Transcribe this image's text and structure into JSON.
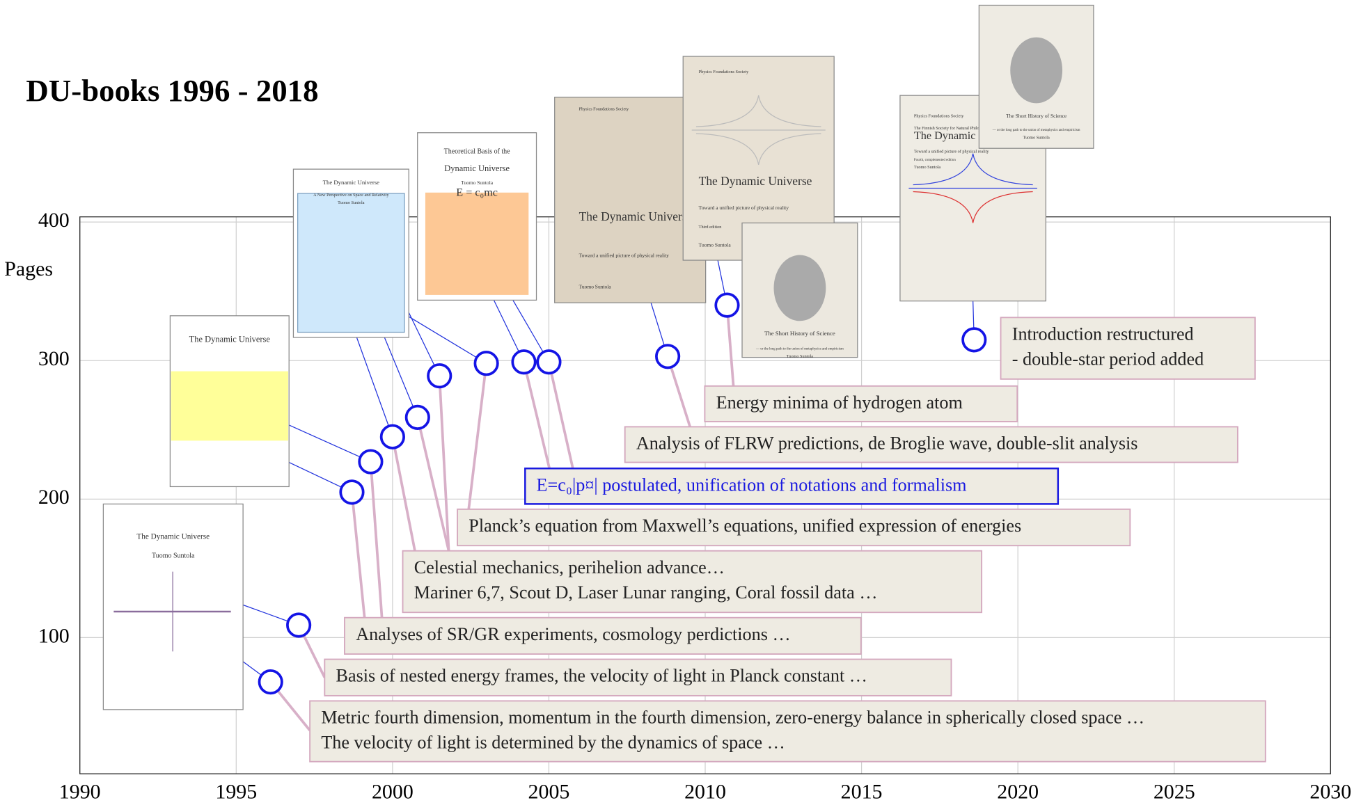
{
  "chart_data": {
    "type": "scatter",
    "title": "DU-books 1996 - 2018",
    "y_label": "Pages",
    "x": [
      1996.1,
      1997.0,
      1998.7,
      1999.3,
      2000.0,
      2000.8,
      2001.5,
      2003.0,
      2004.2,
      2005.0,
      2008.8,
      2010.7,
      2018.6
    ],
    "values": [
      68,
      109,
      205,
      227,
      245,
      259,
      289,
      298,
      299,
      299,
      303,
      340,
      315
    ],
    "color": "#1414e6",
    "xlim": [
      1990,
      2030
    ],
    "xticks": [
      1990,
      1995,
      2000,
      2005,
      2010,
      2015,
      2020,
      2025,
      2030
    ],
    "ylim": [
      0,
      400
    ],
    "yticks": [
      100,
      200,
      300,
      400
    ],
    "grid": true,
    "annotations": [
      [
        "Metric fourth dimension, momentum in the fourth dimension, zero-energy balance in spherically closed space …",
        "The velocity of light is determined by the dynamics of space …"
      ],
      [
        "Basis of nested energy frames, the velocity of light in Planck constant …"
      ],
      [
        "Analyses of SR/GR experiments, cosmology perdictions …"
      ],
      [
        "Celestial mechanics, perihelion advance…",
        "Mariner 6,7, Scout D, Laser Lunar ranging, Coral fossil data …"
      ],
      [
        "Planck’s equation from Maxwell’s equations, unified expression of energies"
      ],
      [
        "E=c₀|p¤| postulated, unification of notations and formalism"
      ],
      [
        "Analysis of FLRW predictions, de Broglie wave, double-slit analysis"
      ],
      [
        "Energy minima of hydrogen atom"
      ],
      [
        "Introduction restructured",
        "- double-star period added"
      ]
    ]
  },
  "covers": [
    [
      "The Dynamic Universe",
      "Tuomo Suntola"
    ],
    [
      "The Dynamic Universe"
    ],
    [
      "The Dynamic Universe",
      "A New Perspective on Space and Relativity",
      "Tuomo Suntola"
    ],
    [
      "Theoretical Basis of the",
      "Dynamic Universe",
      "Tuomo Suntola",
      "E = c₀mc"
    ],
    [
      "Physics Foundations Society",
      "The Dynamic Universe",
      "Toward a unified picture of physical reality",
      "Tuomo Suntola"
    ],
    [
      "Physics Foundations Society",
      "The Dynamic Universe",
      "Toward a unified picture of physical reality",
      "Third edition",
      "Tuomo Suntola"
    ],
    [
      "The Short History of Science",
      "— or the long path to the union of metaphysics and empiricism",
      "Tuomo Suntola"
    ],
    [
      "Physics Foundations Society",
      "The Finnish Society for Natural Philosophy",
      "The Dynamic Universe",
      "Toward a unified picture of physical reality",
      "Fourth, complemented edition",
      "Tuomo Suntola"
    ],
    [
      "The Short History of Science",
      "— or the long path to the union of metaphysics and empiricism",
      "Tuomo Suntola"
    ]
  ]
}
